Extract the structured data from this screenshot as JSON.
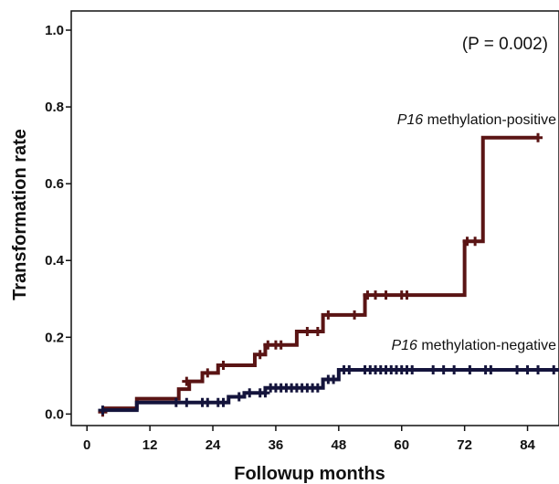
{
  "chart_data": {
    "type": "line",
    "title": "",
    "xlabel": "Followup months",
    "ylabel": "Transformation rate",
    "xlim": [
      -3,
      90
    ],
    "ylim": [
      -0.03,
      1.05
    ],
    "x_ticks": [
      0,
      12,
      24,
      36,
      48,
      60,
      72,
      84
    ],
    "y_ticks": [
      0.0,
      0.2,
      0.4,
      0.6,
      0.8,
      1.0
    ],
    "y_tick_labels": [
      "0.0",
      "0.2",
      "0.4",
      "0.6",
      "0.8",
      "1.0"
    ],
    "grid": false,
    "annotation": "(P = 0.002)",
    "series": [
      {
        "name": "methylation-positive",
        "label_italic": "P16",
        "label_rest": " methylation-positive",
        "color": "#5a1414",
        "steps": [
          [
            3,
            0.015
          ],
          [
            9.5,
            0.04
          ],
          [
            17.5,
            0.065
          ],
          [
            19.5,
            0.085
          ],
          [
            22,
            0.107
          ],
          [
            25,
            0.127
          ],
          [
            32,
            0.155
          ],
          [
            34,
            0.18
          ],
          [
            40,
            0.215
          ],
          [
            45,
            0.258
          ],
          [
            53,
            0.31
          ],
          [
            72,
            0.45
          ],
          [
            75.5,
            0.72
          ],
          [
            86,
            0.72
          ]
        ],
        "censors": [
          [
            3,
            0.005
          ],
          [
            19,
            0.085
          ],
          [
            23,
            0.107
          ],
          [
            26,
            0.127
          ],
          [
            33,
            0.155
          ],
          [
            34.5,
            0.18
          ],
          [
            36,
            0.18
          ],
          [
            37,
            0.18
          ],
          [
            42,
            0.215
          ],
          [
            44,
            0.215
          ],
          [
            46,
            0.258
          ],
          [
            51,
            0.258
          ],
          [
            53.5,
            0.31
          ],
          [
            55,
            0.31
          ],
          [
            57,
            0.31
          ],
          [
            60,
            0.31
          ],
          [
            61,
            0.31
          ],
          [
            72.5,
            0.45
          ],
          [
            74,
            0.45
          ],
          [
            86,
            0.72
          ]
        ]
      },
      {
        "name": "methylation-negative",
        "label_italic": "P16",
        "label_rest": " methylation-negative",
        "color": "#14143c",
        "steps": [
          [
            3,
            0.01
          ],
          [
            9.5,
            0.03
          ],
          [
            27,
            0.045
          ],
          [
            30,
            0.055
          ],
          [
            34,
            0.068
          ],
          [
            45,
            0.09
          ],
          [
            48,
            0.115
          ],
          [
            90,
            0.115
          ]
        ],
        "censors": [
          [
            3,
            0.01
          ],
          [
            17,
            0.03
          ],
          [
            19,
            0.03
          ],
          [
            22,
            0.03
          ],
          [
            23,
            0.03
          ],
          [
            25,
            0.03
          ],
          [
            26,
            0.03
          ],
          [
            29,
            0.045
          ],
          [
            31,
            0.055
          ],
          [
            33,
            0.055
          ],
          [
            34,
            0.055
          ],
          [
            35,
            0.068
          ],
          [
            36,
            0.068
          ],
          [
            37,
            0.068
          ],
          [
            38,
            0.068
          ],
          [
            39,
            0.068
          ],
          [
            40,
            0.068
          ],
          [
            41,
            0.068
          ],
          [
            42,
            0.068
          ],
          [
            43,
            0.068
          ],
          [
            44,
            0.068
          ],
          [
            46,
            0.09
          ],
          [
            47,
            0.09
          ],
          [
            49,
            0.115
          ],
          [
            50,
            0.115
          ],
          [
            53,
            0.115
          ],
          [
            54,
            0.115
          ],
          [
            55,
            0.115
          ],
          [
            56,
            0.115
          ],
          [
            57,
            0.115
          ],
          [
            58,
            0.115
          ],
          [
            59,
            0.115
          ],
          [
            60,
            0.115
          ],
          [
            61,
            0.115
          ],
          [
            62,
            0.115
          ],
          [
            66,
            0.115
          ],
          [
            68,
            0.115
          ],
          [
            70,
            0.115
          ],
          [
            73,
            0.115
          ],
          [
            76,
            0.115
          ],
          [
            77,
            0.115
          ],
          [
            82,
            0.115
          ],
          [
            84,
            0.115
          ],
          [
            86,
            0.115
          ],
          [
            89,
            0.115
          ]
        ]
      }
    ]
  }
}
